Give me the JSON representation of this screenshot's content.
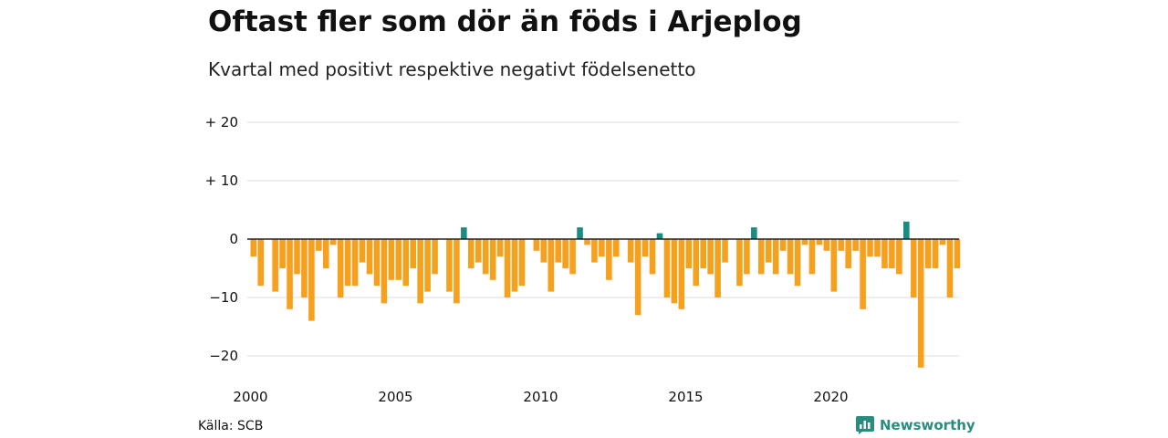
{
  "title": "Oftast fler som dör än föds i Arjeplog",
  "subtitle": "Kvartal med positivt respektive negativt födelsenetto",
  "source": "Källa: SCB",
  "brand": "Newsworthy",
  "colors": {
    "positive": "#1a8c82",
    "negative": "#f5a11e",
    "grid": "#dddddd",
    "zero": "#222222",
    "brand": "#2a8c7f"
  },
  "chart_data": {
    "type": "bar",
    "y_ticks": [
      {
        "value": 20,
        "label": "+ 20"
      },
      {
        "value": 10,
        "label": "+ 10"
      },
      {
        "value": 0,
        "label": "0"
      },
      {
        "value": -10,
        "label": "−10"
      },
      {
        "value": -20,
        "label": "−20"
      }
    ],
    "x_ticks": [
      "2000",
      "2005",
      "2010",
      "2015",
      "2020"
    ],
    "ylim": [
      -23,
      20
    ],
    "start": "2000 Q1",
    "values": [
      -3,
      -8,
      0,
      -9,
      -5,
      -12,
      -6,
      -10,
      -14,
      -2,
      -5,
      -1,
      -10,
      -8,
      -8,
      -4,
      -6,
      -8,
      -11,
      -7,
      -7,
      -8,
      -5,
      -11,
      -9,
      -6,
      0,
      -9,
      -11,
      2,
      -5,
      -4,
      -6,
      -7,
      -3,
      -10,
      -9,
      -8,
      0,
      -2,
      -4,
      -9,
      -4,
      -5,
      -6,
      2,
      -1,
      -4,
      -3,
      -7,
      -3,
      0,
      -4,
      -13,
      -3,
      -6,
      1,
      -10,
      -11,
      -12,
      -5,
      -8,
      -5,
      -6,
      -10,
      -4,
      0,
      -8,
      -6,
      2,
      -6,
      -4,
      -6,
      -2,
      -6,
      -8,
      -1,
      -6,
      -1,
      -2,
      -9,
      -2,
      -5,
      -2,
      -12,
      -3,
      -3,
      -5,
      -5,
      -6,
      3,
      -10,
      -22,
      -5,
      -5,
      -1,
      -10,
      -5
    ]
  }
}
